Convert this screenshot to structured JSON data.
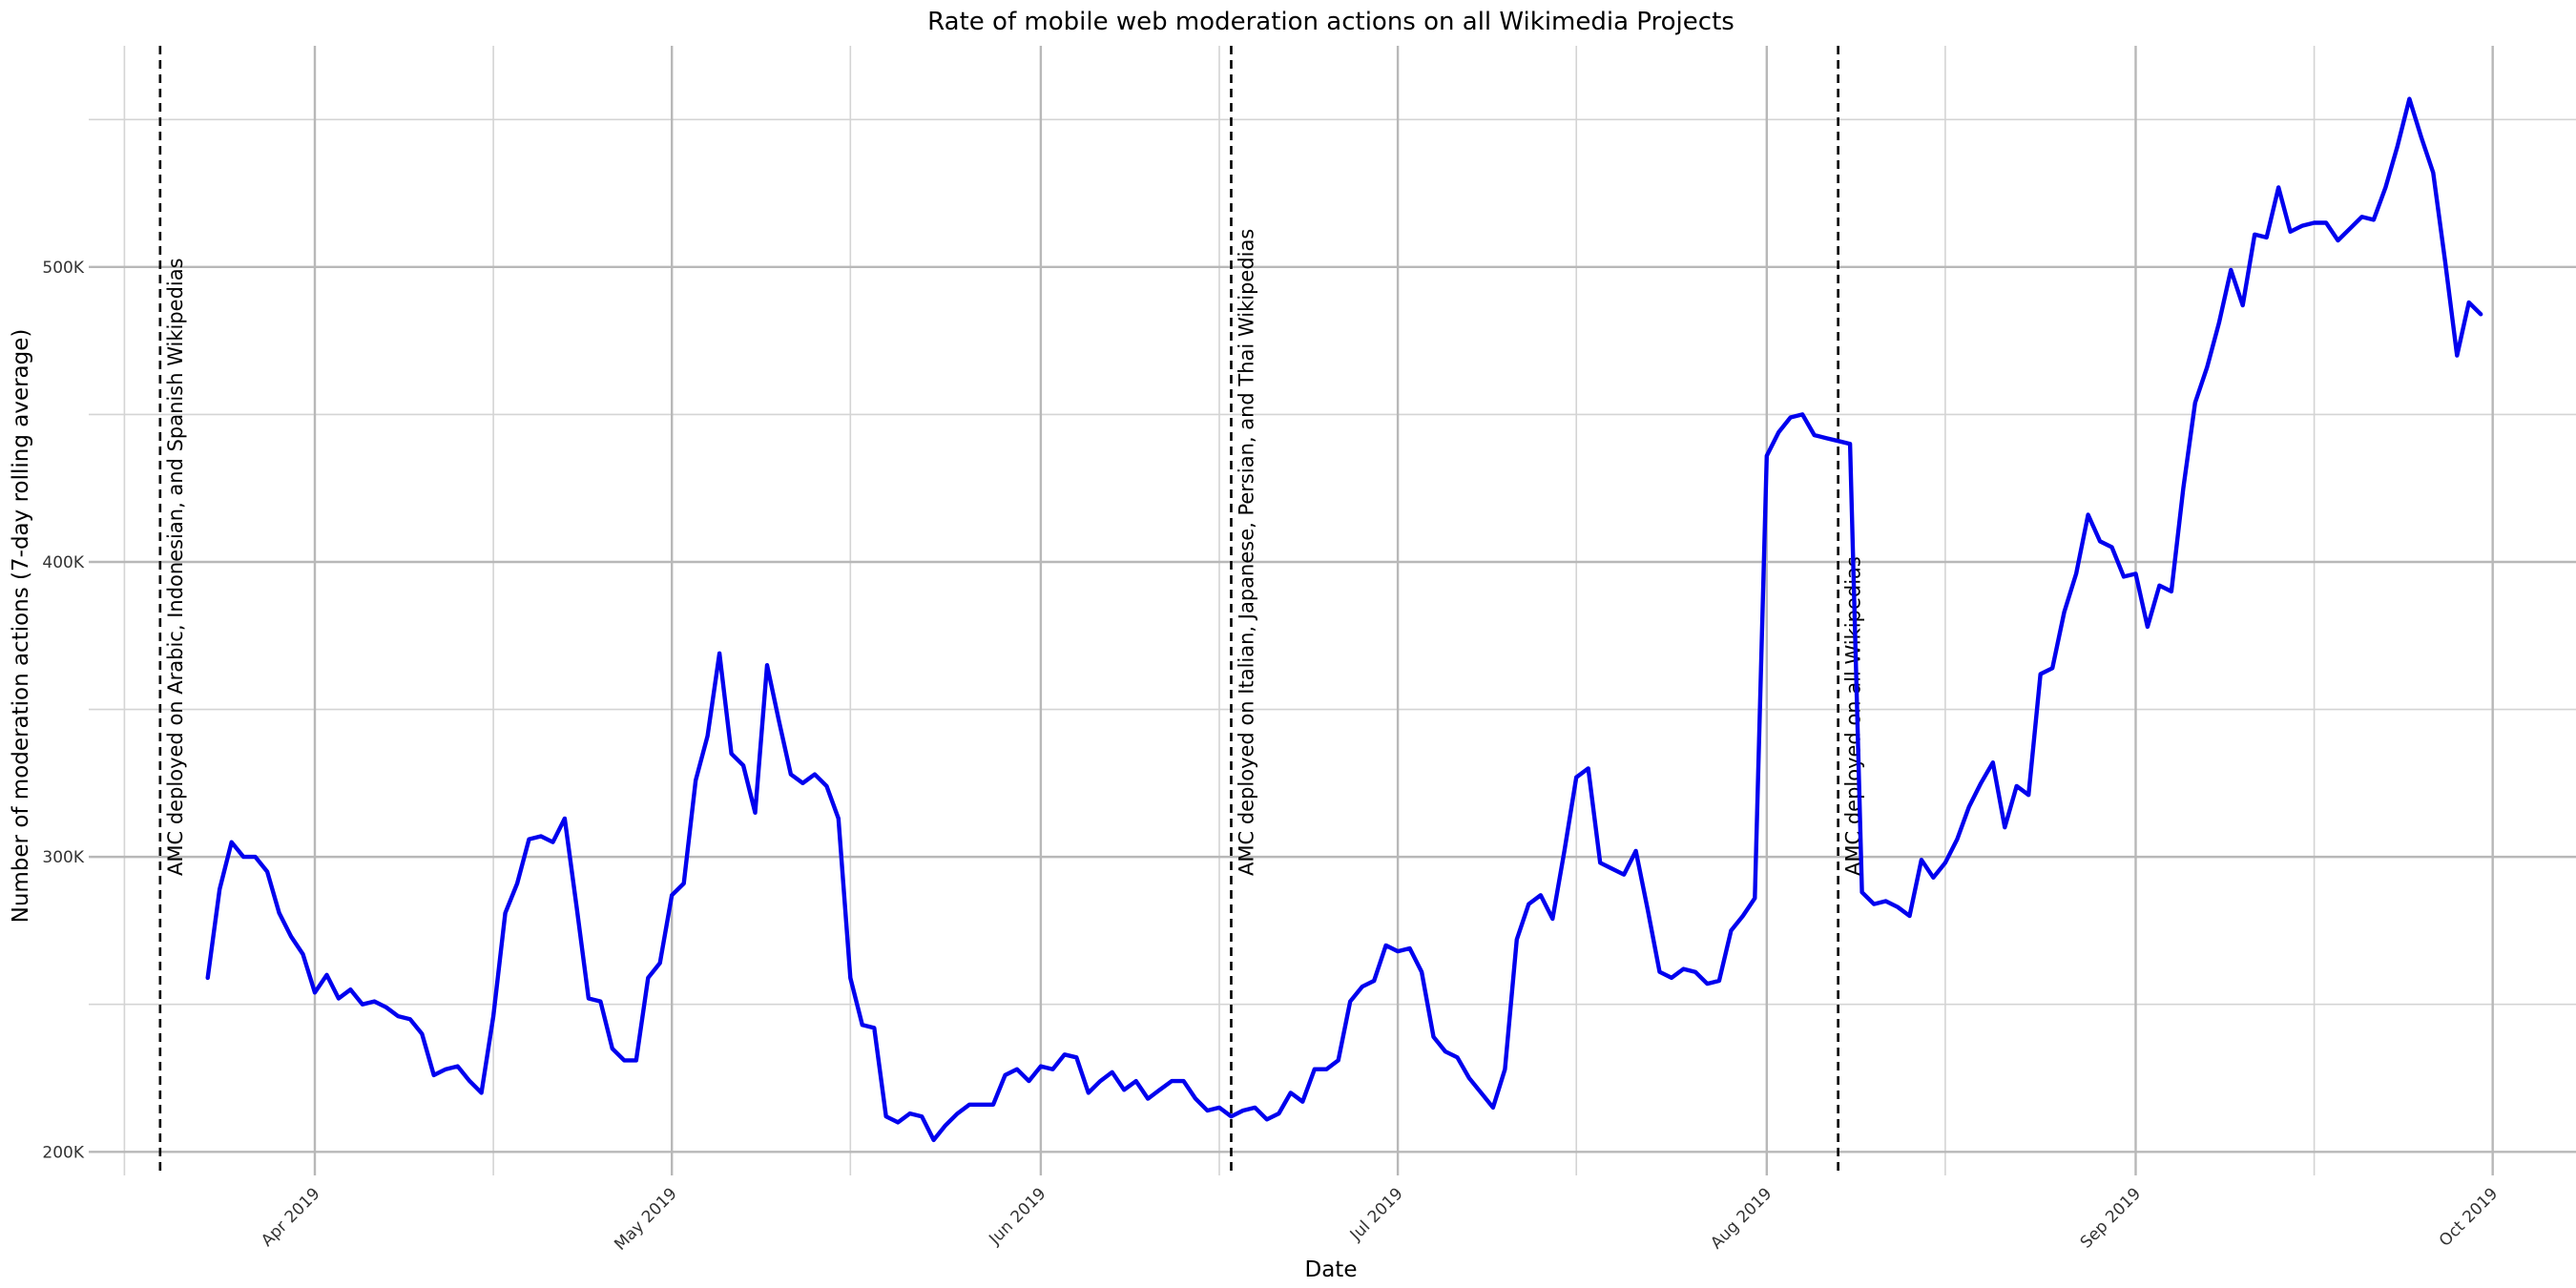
{
  "chart_data": {
    "type": "line",
    "title": "Rate of mobile web moderation actions on all Wikimedia Projects",
    "xlabel": "Date",
    "ylabel": "Number of moderation actions (7-day rolling average)",
    "x_axis": "date",
    "xlim": [
      "2019-03-13",
      "2019-10-08"
    ],
    "ylim": [
      192000,
      575000
    ],
    "x_ticks": [
      {
        "date": "2019-04-01",
        "label": "Apr 2019"
      },
      {
        "date": "2019-05-01",
        "label": "May 2019"
      },
      {
        "date": "2019-06-01",
        "label": "Jun 2019"
      },
      {
        "date": "2019-07-01",
        "label": "Jul 2019"
      },
      {
        "date": "2019-08-01",
        "label": "Aug 2019"
      },
      {
        "date": "2019-09-01",
        "label": "Sep 2019"
      },
      {
        "date": "2019-10-01",
        "label": "Oct 2019"
      }
    ],
    "x_minor_ticks": [
      "2019-03-16",
      "2019-04-16",
      "2019-05-16",
      "2019-06-16",
      "2019-07-16",
      "2019-08-16",
      "2019-09-16"
    ],
    "y_ticks": [
      {
        "value": 200000,
        "label": "200K"
      },
      {
        "value": 300000,
        "label": "300K"
      },
      {
        "value": 400000,
        "label": "400K"
      },
      {
        "value": 500000,
        "label": "500K"
      }
    ],
    "y_minor_ticks": [
      250000,
      350000,
      450000,
      550000
    ],
    "grid": true,
    "line_color": "#0000ee",
    "annotations": [
      {
        "date": "2019-03-19",
        "label": "AMC deployed on Arabic, Indonesian, and Spanish Wikipedias"
      },
      {
        "date": "2019-06-17",
        "label": "AMC deployed on Italian, Japanese, Persian, and Thai Wikipedias"
      },
      {
        "date": "2019-08-07",
        "label": "AMC deployed on all Wikipedias"
      }
    ],
    "series": [
      {
        "x": [
          "2019-03-23",
          "2019-03-24",
          "2019-03-25",
          "2019-03-26",
          "2019-03-27",
          "2019-03-28",
          "2019-03-29",
          "2019-03-30",
          "2019-03-31",
          "2019-04-01",
          "2019-04-02",
          "2019-04-03",
          "2019-04-04",
          "2019-04-05",
          "2019-04-06",
          "2019-04-07",
          "2019-04-08",
          "2019-04-09",
          "2019-04-10",
          "2019-04-11",
          "2019-04-12",
          "2019-04-13",
          "2019-04-14",
          "2019-04-15",
          "2019-04-16",
          "2019-04-17",
          "2019-04-18",
          "2019-04-19",
          "2019-04-20",
          "2019-04-21",
          "2019-04-22",
          "2019-04-23",
          "2019-04-24",
          "2019-04-25",
          "2019-04-26",
          "2019-04-27",
          "2019-04-28",
          "2019-04-29",
          "2019-04-30",
          "2019-05-01",
          "2019-05-02",
          "2019-05-03",
          "2019-05-04",
          "2019-05-05",
          "2019-05-06",
          "2019-05-07",
          "2019-05-08",
          "2019-05-09",
          "2019-05-10",
          "2019-05-11",
          "2019-05-12",
          "2019-05-13",
          "2019-05-14",
          "2019-05-15",
          "2019-05-16",
          "2019-05-17",
          "2019-05-18",
          "2019-05-19",
          "2019-05-20",
          "2019-05-21",
          "2019-05-22",
          "2019-05-23",
          "2019-05-24",
          "2019-05-25",
          "2019-05-26",
          "2019-05-27",
          "2019-05-28",
          "2019-05-29",
          "2019-05-30",
          "2019-05-31",
          "2019-06-01",
          "2019-06-02",
          "2019-06-03",
          "2019-06-04",
          "2019-06-05",
          "2019-06-06",
          "2019-06-07",
          "2019-06-08",
          "2019-06-09",
          "2019-06-10",
          "2019-06-11",
          "2019-06-12",
          "2019-06-13",
          "2019-06-14",
          "2019-06-15",
          "2019-06-16",
          "2019-06-17",
          "2019-06-18",
          "2019-06-19",
          "2019-06-20",
          "2019-06-21",
          "2019-06-22",
          "2019-06-23",
          "2019-06-24",
          "2019-06-25",
          "2019-06-26",
          "2019-06-27",
          "2019-06-28",
          "2019-06-29",
          "2019-06-30",
          "2019-07-01",
          "2019-07-02",
          "2019-07-03",
          "2019-07-04",
          "2019-07-05",
          "2019-07-06",
          "2019-07-07",
          "2019-07-08",
          "2019-07-09",
          "2019-07-10",
          "2019-07-11",
          "2019-07-12",
          "2019-07-13",
          "2019-07-14",
          "2019-07-15",
          "2019-07-16",
          "2019-07-17",
          "2019-07-18",
          "2019-07-19",
          "2019-07-20",
          "2019-07-21",
          "2019-07-22",
          "2019-07-23",
          "2019-07-24",
          "2019-07-25",
          "2019-07-26",
          "2019-07-27",
          "2019-07-28",
          "2019-07-29",
          "2019-07-30",
          "2019-07-31",
          "2019-08-01",
          "2019-08-02",
          "2019-08-03",
          "2019-08-04",
          "2019-08-05",
          "2019-08-06",
          "2019-08-07",
          "2019-08-08",
          "2019-08-09",
          "2019-08-10",
          "2019-08-11",
          "2019-08-12",
          "2019-08-13",
          "2019-08-14",
          "2019-08-15",
          "2019-08-16",
          "2019-08-17",
          "2019-08-18",
          "2019-08-19",
          "2019-08-20",
          "2019-08-21",
          "2019-08-22",
          "2019-08-23",
          "2019-08-24",
          "2019-08-25",
          "2019-08-26",
          "2019-08-27",
          "2019-08-28",
          "2019-08-29",
          "2019-08-30",
          "2019-08-31",
          "2019-09-01",
          "2019-09-02",
          "2019-09-03",
          "2019-09-04",
          "2019-09-05",
          "2019-09-06",
          "2019-09-07",
          "2019-09-08",
          "2019-09-09",
          "2019-09-10",
          "2019-09-11",
          "2019-09-12",
          "2019-09-13",
          "2019-09-14",
          "2019-09-15",
          "2019-09-16",
          "2019-09-17",
          "2019-09-18",
          "2019-09-19",
          "2019-09-20",
          "2019-09-21",
          "2019-09-22",
          "2019-09-23",
          "2019-09-24",
          "2019-09-25",
          "2019-09-26",
          "2019-09-27",
          "2019-09-28",
          "2019-09-29",
          "2019-09-30"
        ],
        "y": [
          259000,
          289000,
          305000,
          300000,
          300000,
          295000,
          281000,
          273000,
          267000,
          254000,
          260000,
          252000,
          255000,
          250000,
          251000,
          249000,
          246000,
          245000,
          240000,
          226000,
          228000,
          229000,
          224000,
          220000,
          246000,
          281000,
          291000,
          306000,
          307000,
          305000,
          313000,
          283000,
          252000,
          251000,
          235000,
          231000,
          231000,
          259000,
          264000,
          287000,
          291000,
          326000,
          341000,
          369000,
          335000,
          331000,
          315000,
          365000,
          346000,
          328000,
          325000,
          328000,
          324000,
          313000,
          259000,
          243000,
          242000,
          212000,
          210000,
          213000,
          212000,
          204000,
          209000,
          213000,
          216000,
          216000,
          216000,
          226000,
          228000,
          224000,
          229000,
          228000,
          233000,
          232000,
          220000,
          224000,
          227000,
          221000,
          224000,
          218000,
          221000,
          224000,
          224000,
          218000,
          214000,
          215000,
          212000,
          214000,
          215000,
          211000,
          213000,
          220000,
          217000,
          228000,
          228000,
          231000,
          251000,
          256000,
          258000,
          270000,
          268000,
          269000,
          261000,
          239000,
          234000,
          232000,
          225000,
          220000,
          215000,
          228000,
          272000,
          284000,
          287000,
          279000,
          302000,
          327000,
          330000,
          298000,
          296000,
          294000,
          302000,
          282000,
          261000,
          259000,
          262000,
          261000,
          257000,
          258000,
          275000,
          280000,
          286000,
          436000,
          444000,
          449000,
          450000,
          443000,
          442000,
          441000,
          440000,
          288000,
          284000,
          285000,
          283000,
          280000,
          299000,
          293000,
          298000,
          306000,
          317000,
          325000,
          332000,
          310000,
          324000,
          321000,
          362000,
          364000,
          383000,
          396000,
          416000,
          407000,
          405000,
          395000,
          396000,
          378000,
          392000,
          390000,
          425000,
          454000,
          466000,
          481000,
          499000,
          487000,
          511000,
          510000,
          527000,
          512000,
          514000,
          515000,
          515000,
          509000,
          513000,
          517000,
          516000,
          527000,
          541000,
          557000,
          544000,
          532000,
          502000,
          470000,
          488000,
          484000
        ]
      }
    ]
  }
}
